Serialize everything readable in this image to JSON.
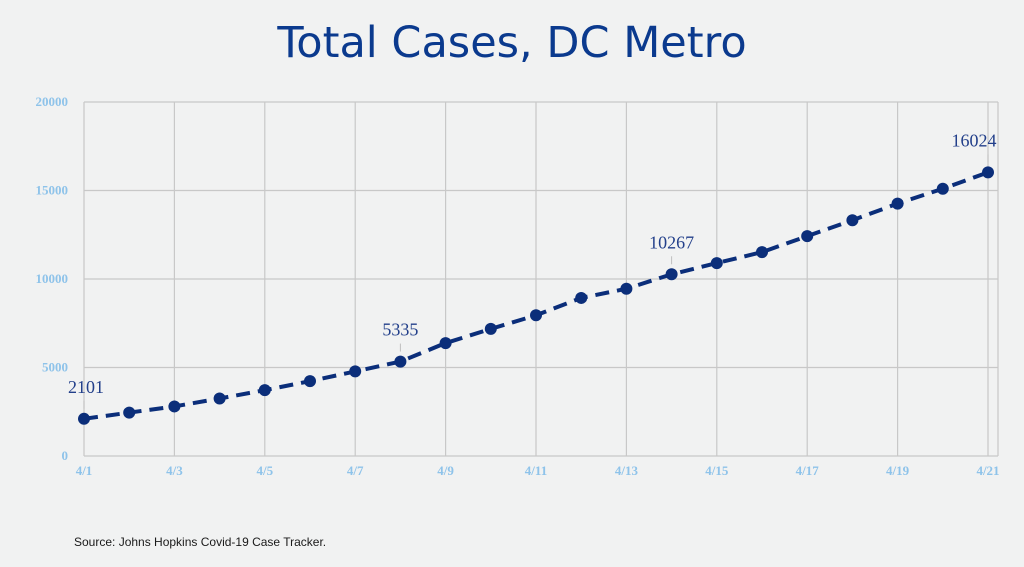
{
  "title": "Total Cases, DC Metro",
  "source": "Source: Johns Hopkins Covid-19 Case Tracker.",
  "colors": {
    "line": "#0b2e7a",
    "grid": "#c8c8c8",
    "tick": "#8ec3ea",
    "title": "#0b3a8e",
    "data_label": "#223f8a"
  },
  "chart_data": {
    "type": "line",
    "title": "Total Cases, DC Metro",
    "xlabel": "",
    "ylabel": "",
    "x": [
      "4/1",
      "4/2",
      "4/3",
      "4/4",
      "4/5",
      "4/6",
      "4/7",
      "4/8",
      "4/9",
      "4/10",
      "4/11",
      "4/12",
      "4/13",
      "4/14",
      "4/15",
      "4/16",
      "4/17",
      "4/18",
      "4/19",
      "4/20",
      "4/21"
    ],
    "x_tick_labels": [
      "4/1",
      "4/3",
      "4/5",
      "4/7",
      "4/9",
      "4/11",
      "4/13",
      "4/15",
      "4/17",
      "4/19",
      "4/21"
    ],
    "series": [
      {
        "values": [
          2101,
          2450,
          2800,
          3250,
          3720,
          4230,
          4780,
          5335,
          6380,
          7180,
          7950,
          8930,
          9450,
          10267,
          10900,
          11520,
          12420,
          13320,
          14260,
          15100,
          16024
        ],
        "line_style": "dashed",
        "marker": "circle"
      }
    ],
    "data_labels": [
      {
        "x": "4/1",
        "text": "2101"
      },
      {
        "x": "4/8",
        "text": "5335"
      },
      {
        "x": "4/14",
        "text": "10267"
      },
      {
        "x": "4/21",
        "text": "16024"
      }
    ],
    "ylim": [
      0,
      20000
    ],
    "y_ticks": [
      0,
      5000,
      10000,
      15000,
      20000
    ],
    "grid": true,
    "legend": "none"
  }
}
